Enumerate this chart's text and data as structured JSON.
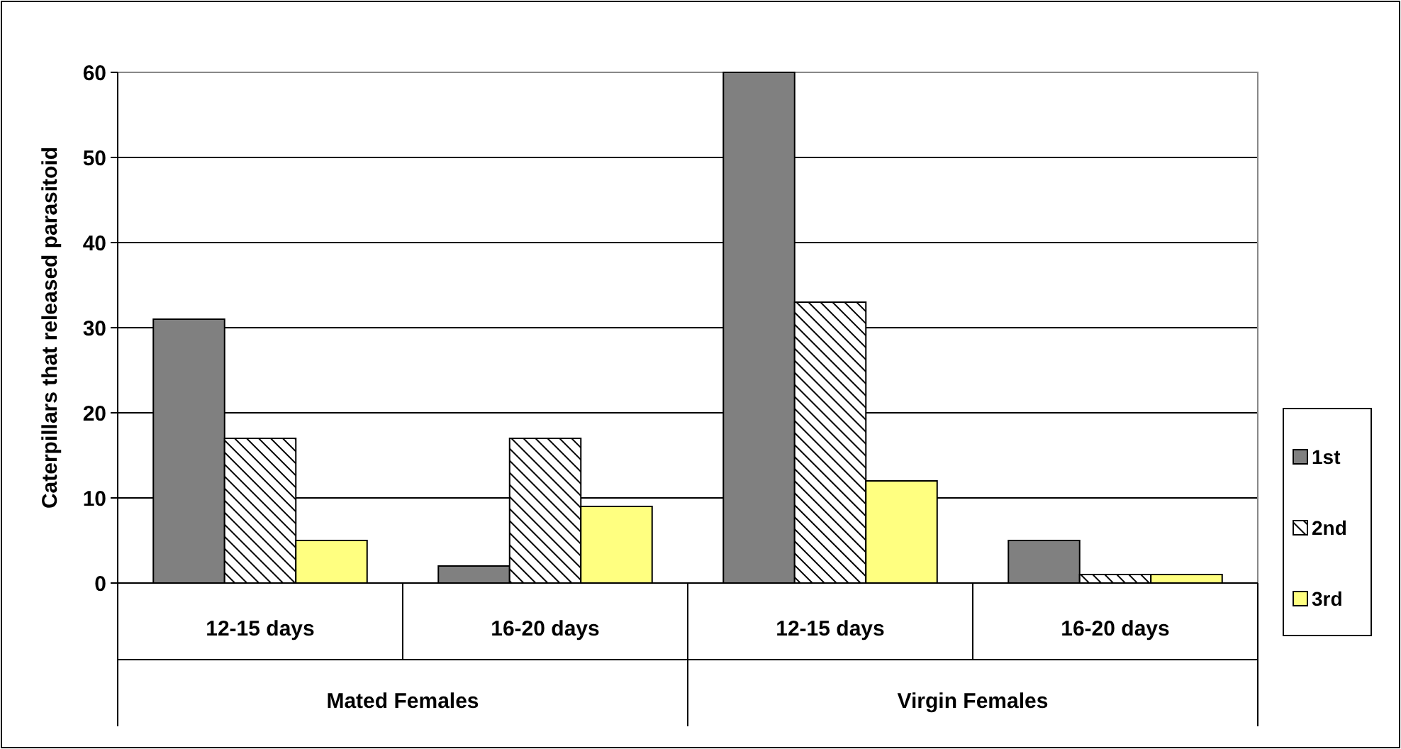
{
  "chart_data": {
    "type": "bar",
    "ylabel": "Caterpillars that released parasitoid",
    "categories": [
      "12-15 days",
      "16-20 days",
      "12-15 days",
      "16-20 days"
    ],
    "annotations": [
      "Mated Females",
      "Virgin Females"
    ],
    "series": [
      {
        "name": "1st",
        "color": "#808080",
        "values": [
          31,
          2,
          60,
          5
        ]
      },
      {
        "name": "2nd",
        "color": "#000000",
        "values": [
          17,
          17,
          33,
          1
        ]
      },
      {
        "name": "3rd",
        "color": "#ffff80",
        "values": [
          5,
          9,
          12,
          1
        ]
      }
    ],
    "ylim": [
      0,
      60
    ],
    "yticks": [
      0,
      10,
      20,
      30,
      40,
      50,
      60
    ],
    "grid": "y",
    "legend": "right"
  }
}
